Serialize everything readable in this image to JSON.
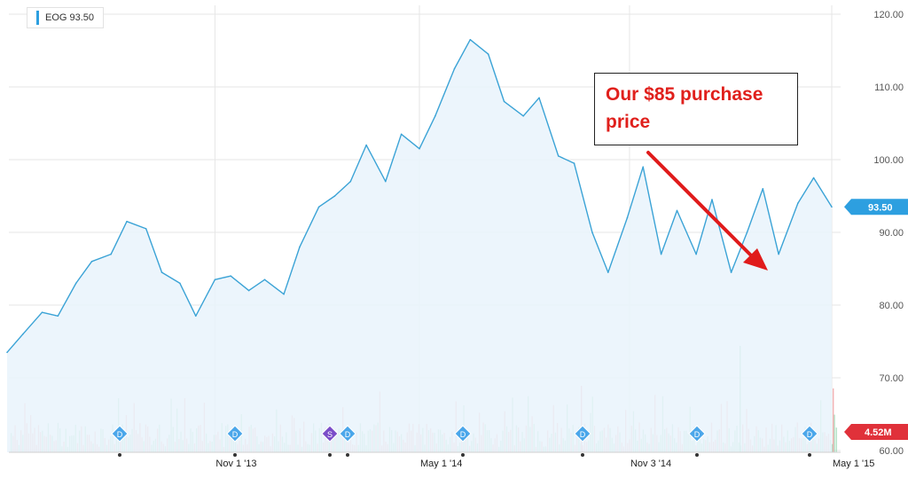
{
  "legend": {
    "label": "EOG 93.50",
    "color": "#2d9fe0"
  },
  "annotation": {
    "text": "Our $85 purchase price",
    "color": "#e0201c"
  },
  "chart_data": {
    "type": "area",
    "title": "",
    "xlabel": "",
    "ylabel": "",
    "x_ticks": [
      "Nov 1 '13",
      "May 1 '14",
      "Nov 3 '14",
      "May 1 '15"
    ],
    "y_ticks": [
      "60.00",
      "70.00",
      "80.00",
      "90.00",
      "100.00",
      "110.00",
      "120.00"
    ],
    "ylim": [
      60,
      120
    ],
    "grid": true,
    "price_badge": "93.50",
    "volume_badge": "4.52M",
    "series": [
      {
        "name": "EOG",
        "color": "#3ba3d6",
        "x": [
          "2013-05-01",
          "2013-05-15",
          "2013-06-01",
          "2013-06-15",
          "2013-07-01",
          "2013-07-15",
          "2013-08-01",
          "2013-08-15",
          "2013-09-01",
          "2013-09-15",
          "2013-10-01",
          "2013-10-15",
          "2013-11-01",
          "2013-11-15",
          "2013-12-01",
          "2013-12-15",
          "2014-01-01",
          "2014-01-15",
          "2014-02-01",
          "2014-02-15",
          "2014-03-01",
          "2014-03-15",
          "2014-04-01",
          "2014-04-15",
          "2014-05-01",
          "2014-05-15",
          "2014-06-01",
          "2014-06-15",
          "2014-07-01",
          "2014-07-15",
          "2014-08-01",
          "2014-08-15",
          "2014-09-01",
          "2014-09-15",
          "2014-10-01",
          "2014-10-15",
          "2014-11-01",
          "2014-11-15",
          "2014-12-01",
          "2014-12-15",
          "2015-01-01",
          "2015-01-15",
          "2015-02-01",
          "2015-02-15",
          "2015-03-01",
          "2015-03-15",
          "2015-04-01",
          "2015-04-15",
          "2015-05-01"
        ],
        "values": [
          73.5,
          76.0,
          79.0,
          78.5,
          83.0,
          86.0,
          87.0,
          91.5,
          90.5,
          84.5,
          83.0,
          78.5,
          83.5,
          84.0,
          82.0,
          83.5,
          81.5,
          88.0,
          93.5,
          95.0,
          97.0,
          102.0,
          97.0,
          103.5,
          101.5,
          106.0,
          112.5,
          116.5,
          114.5,
          108.0,
          106.0,
          108.5,
          100.5,
          99.5,
          90.0,
          84.5,
          92.0,
          99.0,
          87.0,
          93.0,
          87.0,
          94.5,
          84.5,
          90.0,
          96.0,
          87.0,
          94.0,
          97.5,
          93.5
        ]
      }
    ],
    "volume": {
      "unit": "M",
      "dividend_markers": [
        "D",
        "D",
        "S",
        "D",
        "D",
        "D",
        "D",
        "D"
      ]
    }
  }
}
